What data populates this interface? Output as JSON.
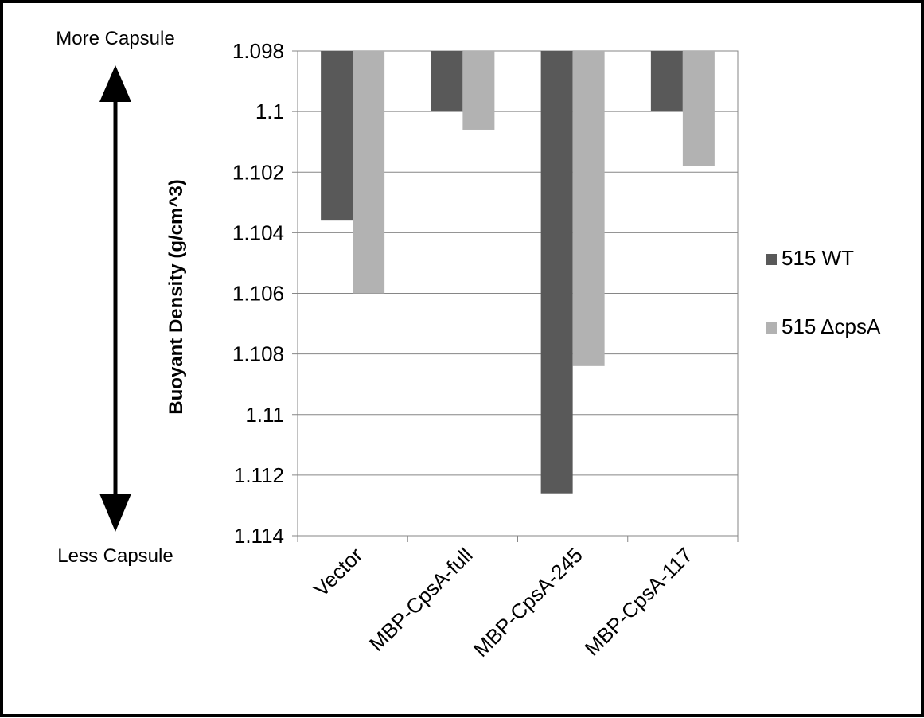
{
  "annotations": {
    "top": "More Capsule",
    "bottom": "Less Capsule"
  },
  "legend": {
    "position": "right",
    "items": [
      {
        "label": "515 WT",
        "color": "#595959"
      },
      {
        "label": "515 ΔcpsA",
        "color": "#b2b2b2"
      }
    ]
  },
  "chart_data": {
    "type": "bar",
    "categories": [
      "Vector",
      "MBP-CpsA-full",
      "MBP-CpsA-245",
      "MBP-CpsA-117"
    ],
    "series": [
      {
        "name": "515 WT",
        "color": "#595959",
        "values": [
          1.1036,
          1.1,
          1.1126,
          1.1
        ]
      },
      {
        "name": "515 ΔcpsA",
        "color": "#b2b2b2",
        "values": [
          1.106,
          1.1006,
          1.1084,
          1.1018
        ]
      }
    ],
    "ylabel": "Buoyant Density (g/cm^3)",
    "xlabel": "",
    "ylim": [
      1.098,
      1.114
    ],
    "y_axis_inverted": true,
    "yticks": [
      "1.098",
      "1.1",
      "1.102",
      "1.104",
      "1.106",
      "1.108",
      "1.11",
      "1.112",
      "1.114"
    ],
    "grid": true,
    "legend_position": "right"
  }
}
